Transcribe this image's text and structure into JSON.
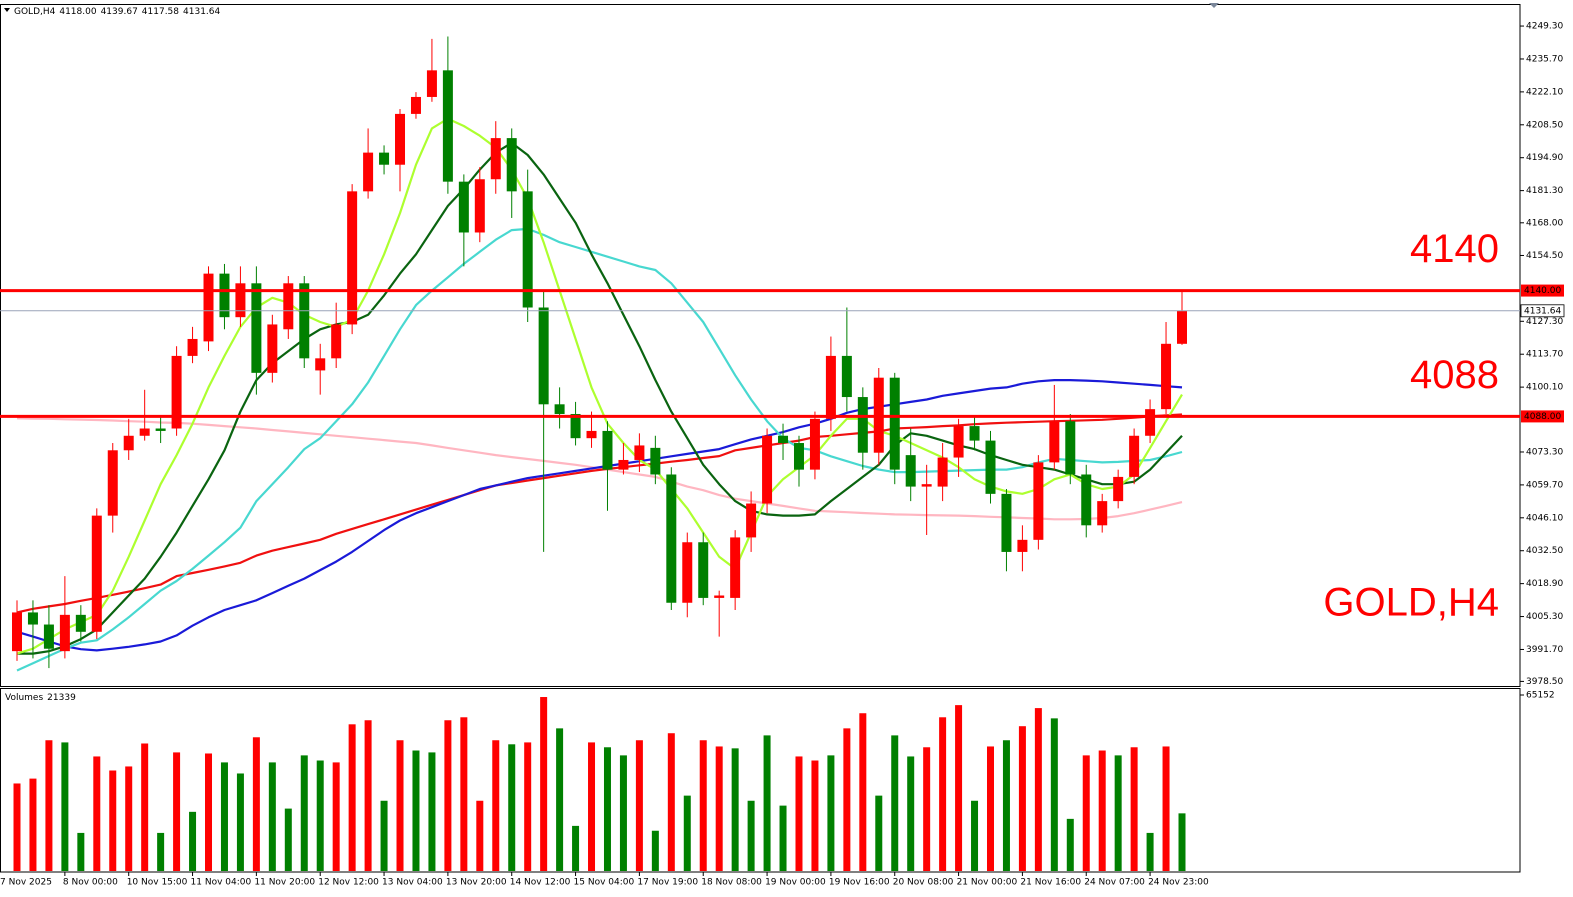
{
  "chart_data": {
    "type": "candlestick",
    "title": "GOLD,H4",
    "symbol": "GOLD,H4",
    "header_values": [
      "4118.00",
      "4139.67",
      "4117.58",
      "4131.64"
    ],
    "first_category": "7 Nov 2025",
    "categories": [
      null,
      null,
      null,
      "8 Nov 00:00",
      null,
      null,
      null,
      "10 Nov 15:00",
      null,
      null,
      null,
      "11 Nov 04:00",
      null,
      null,
      null,
      "11 Nov 20:00",
      null,
      null,
      null,
      "12 Nov 12:00",
      null,
      null,
      null,
      "13 Nov 04:00",
      null,
      null,
      null,
      "13 Nov 20:00",
      null,
      null,
      null,
      "14 Nov 12:00",
      null,
      null,
      null,
      "15 Nov 04:00",
      null,
      null,
      null,
      "17 Nov 19:00",
      null,
      null,
      null,
      "18 Nov 08:00",
      null,
      null,
      null,
      "19 Nov 00:00",
      null,
      null,
      null,
      "19 Nov 16:00",
      null,
      null,
      null,
      "20 Nov 08:00",
      null,
      null,
      null,
      "21 Nov 00:00",
      null,
      null,
      null,
      "21 Nov 16:00",
      null,
      null,
      null,
      "24 Nov 07:00",
      null,
      null,
      null,
      "24 Nov 23:00",
      null,
      null
    ],
    "open": [
      3991,
      4007,
      4002,
      3991,
      4006,
      3999,
      4047,
      4074,
      4080,
      4083,
      4083,
      4113,
      4119,
      4147,
      4129,
      4143,
      4106,
      4124,
      4143,
      4107,
      4112,
      4126,
      4181,
      4197,
      4192,
      4213,
      4220,
      4231,
      4185,
      4164,
      4186,
      4203,
      4181,
      4133,
      4093,
      4089,
      4079,
      4082,
      4066,
      4070,
      4075,
      4064,
      4011,
      4036,
      4013,
      4013,
      4038,
      4052,
      4080,
      4077,
      4066,
      4087,
      4113,
      4096,
      4073,
      4104,
      4072,
      4059,
      4059,
      4071,
      4084,
      4078,
      4056,
      4032,
      4037,
      4069,
      4086,
      4064,
      4043,
      4053,
      4063,
      4080,
      4091,
      4118
    ],
    "high": [
      4012,
      4012,
      4010,
      4022,
      4010,
      4050,
      4077,
      4087,
      4099,
      4088,
      4117,
      4125,
      4150,
      4151,
      4150,
      4150,
      4130,
      4146,
      4146,
      4118,
      4135,
      4184,
      4207,
      4200,
      4215,
      4222,
      4244,
      4245,
      4188,
      4191,
      4210,
      4207,
      4190,
      4140,
      4100,
      4094,
      4090,
      4086,
      4077,
      4081,
      4080,
      4067,
      4040,
      4040,
      4016,
      4041,
      4057,
      4083,
      4085,
      4080,
      4090,
      4121,
      4133,
      4100,
      4108,
      4106,
      4083,
      4068,
      4077,
      4087,
      4088,
      4082,
      4058,
      4043,
      4072,
      4101,
      4089,
      4068,
      4056,
      4066,
      4083,
      4095,
      4127,
      4139.67
    ],
    "low": [
      3987,
      3988,
      3984,
      3988,
      3995,
      3996,
      4040,
      4070,
      4078,
      4077,
      4080,
      4110,
      4115,
      4124,
      4125,
      4097,
      4102,
      4120,
      4108,
      4097,
      4108,
      4122,
      4178,
      4188,
      4181,
      4211,
      4218,
      4180,
      4150,
      4160,
      4180,
      4170,
      4127,
      4032,
      4083,
      4076,
      4075,
      4049,
      4064,
      4065,
      4060,
      4008,
      4005,
      4010,
      3997,
      4008,
      4032,
      4048,
      4070,
      4059,
      4062,
      4082,
      4090,
      4066,
      4068,
      4060,
      4053,
      4039,
      4053,
      4063,
      4074,
      4052,
      4024,
      4024,
      4033,
      4066,
      4060,
      4038,
      4040,
      4050,
      4060,
      4077,
      4089,
      4117.58
    ],
    "close": [
      4007,
      4002,
      3992,
      4006,
      3999,
      4047,
      4074,
      4080,
      4083,
      4082,
      4113,
      4120,
      4147,
      4129,
      4143,
      4106,
      4126,
      4143,
      4112,
      4112,
      4126,
      4181,
      4197,
      4192,
      4213,
      4220,
      4231,
      4185,
      4164,
      4186,
      4203,
      4181,
      4133,
      4093,
      4089,
      4079,
      4082,
      4066,
      4070,
      4076,
      4064,
      4011,
      4036,
      4013,
      4014,
      4038,
      4052,
      4080,
      4077,
      4066,
      4087,
      4113,
      4096,
      4073,
      4104,
      4066,
      4059,
      4060,
      4071,
      4084,
      4078,
      4056,
      4032,
      4037,
      4069,
      4086,
      4064,
      4043,
      4053,
      4063,
      4080,
      4091,
      4118,
      4131.64
    ],
    "up_color": "#ff0000",
    "down_color": "#008000",
    "ylim": [
      3976.6,
      4258.0
    ],
    "yticks": [
      {
        "value": 4249.3,
        "label": "4249.30"
      },
      {
        "value": 4235.7,
        "label": "4235.70"
      },
      {
        "value": 4222.1,
        "label": "4222.10"
      },
      {
        "value": 4208.5,
        "label": "4208.50"
      },
      {
        "value": 4194.9,
        "label": "4194.90"
      },
      {
        "value": 4181.3,
        "label": "4181.30"
      },
      {
        "value": 4168.0,
        "label": "4168.00"
      },
      {
        "value": 4154.5,
        "label": "4154.50"
      },
      {
        "value": 4127.3,
        "label": "4127.30"
      },
      {
        "value": 4113.7,
        "label": "4113.70"
      },
      {
        "value": 4100.1,
        "label": "4100.10"
      },
      {
        "value": 4073.3,
        "label": "4073.30"
      },
      {
        "value": 4059.7,
        "label": "4059.70"
      },
      {
        "value": 4046.1,
        "label": "4046.10"
      },
      {
        "value": 4032.5,
        "label": "4032.50"
      },
      {
        "value": 4018.9,
        "label": "4018.90"
      },
      {
        "value": 4005.3,
        "label": "4005.30"
      },
      {
        "value": 3991.7,
        "label": "3991.70"
      },
      {
        "value": 3978.5,
        "label": "3978.50"
      }
    ],
    "overlays": [
      {
        "color": "#ffb6c1",
        "values": [
          4087.2,
          4087.1,
          4087.0,
          4086.8,
          4086.7,
          4086.5,
          4086.3,
          4086.0,
          4085.8,
          4085.5,
          4085.3,
          4085.0,
          4084.5,
          4084.0,
          4083.5,
          4083.0,
          4082.4,
          4081.8,
          4081.2,
          4080.6,
          4080.0,
          4079.4,
          4078.8,
          4078.2,
          4077.6,
          4077.0,
          4076.0,
          4075.0,
          4074.0,
          4073.0,
          4072.0,
          4071.2,
          4070.4,
          4069.6,
          4068.8,
          4068.0,
          4067.0,
          4066.0,
          4065.0,
          4064.0,
          4063.0,
          4061.0,
          4059.0,
          4057.5,
          4055.5,
          4054.0,
          4053.0,
          4052.0,
          4051.0,
          4050.0,
          4049.0,
          4048.7,
          4048.4,
          4048.1,
          4047.8,
          4047.5,
          4047.4,
          4047.2,
          4047.1,
          4047.0,
          4046.8,
          4046.5,
          4046.3,
          4046.0,
          4045.8,
          4045.5,
          4045.5,
          4045.6,
          4046.0,
          4046.8,
          4048.0,
          4049.5,
          4051.0,
          4052.6
        ]
      },
      {
        "color": "#f01010",
        "values": [
          4007,
          4008.5,
          4009.5,
          4010.5,
          4011.8,
          4013,
          4014.3,
          4015.6,
          4017,
          4018.5,
          4022,
          4023.3,
          4024.6,
          4026,
          4027.5,
          4030.5,
          4032.5,
          4034,
          4035.5,
          4037,
          4039.5,
          4041.5,
          4043.5,
          4045.5,
          4047.5,
          4049.5,
          4051.5,
          4053.5,
          4055.5,
          4057.5,
          4059.5,
          4060.5,
          4061.5,
          4062.5,
          4063.5,
          4064.5,
          4065.5,
          4066.3,
          4067,
          4067.8,
          4068.5,
          4069.3,
          4070,
          4070.8,
          4071.6,
          4074,
          4075,
          4076,
          4077,
          4078,
          4079.5,
          4080,
          4080.6,
          4081.2,
          4081.8,
          4083,
          4083.3,
          4083.6,
          4084,
          4084.3,
          4084.8,
          4085.1,
          4085.4,
          4085.6,
          4085.8,
          4086,
          4086.2,
          4086.4,
          4086.6,
          4087,
          4087.5,
          4088,
          4088.4,
          4088.8
        ]
      },
      {
        "color": "#1a1ad8",
        "values": [
          3999,
          3997,
          3995,
          3993,
          3991.8,
          3991.3,
          3992,
          3992.8,
          3993.8,
          3995,
          3997.5,
          4001.5,
          4005,
          4008,
          4010,
          4012,
          4015,
          4018,
          4021,
          4024.5,
          4028,
          4032,
          4036.5,
          4041,
          4045,
          4048,
          4050.5,
          4053,
          4055.5,
          4058,
          4059.5,
          4061,
          4062.5,
          4063.5,
          4064.5,
          4065.5,
          4066.5,
          4067.5,
          4068.5,
          4069.5,
          4070.5,
          4071.5,
          4072.5,
          4073.5,
          4074.5,
          4076.5,
          4078.5,
          4080,
          4081.5,
          4083.5,
          4085,
          4087,
          4089.5,
          4091,
          4092,
          4093,
          4094,
          4095,
          4096.5,
          4097.5,
          4098.5,
          4099.5,
          4100,
          4101.5,
          4102.5,
          4103,
          4103,
          4102.8,
          4102.5,
          4102,
          4101.5,
          4101,
          4100.5,
          4100
        ]
      },
      {
        "color": "#48d8d0",
        "values": [
          3983,
          3986,
          3989,
          3992,
          3994.5,
          3995.5,
          4000,
          4005,
          4010.5,
          4016,
          4020,
          4025,
          4030.5,
          4036,
          4042,
          4053,
          4060,
          4067,
          4074.5,
          4079,
          4086,
          4093,
          4102,
          4113,
          4124,
          4134,
          4140,
          4145.5,
          4151,
          4156,
          4161,
          4165,
          4165.5,
          4163,
          4160,
          4158,
          4156,
          4154,
          4152,
          4150,
          4148.5,
          4143,
          4135,
          4127,
          4116,
          4105,
          4095,
          4086,
          4079,
          4075,
          4074,
          4071.5,
          4069.5,
          4067.5,
          4066,
          4065,
          4065,
          4065.2,
          4065.4,
          4065.6,
          4065.8,
          4066,
          4066,
          4067,
          4069,
          4070.5,
          4070,
          4069.5,
          4069,
          4069.2,
          4069.6,
          4070,
          4071.5,
          4073.3
        ]
      },
      {
        "color": "#0a6410",
        "values": [
          3990,
          3990,
          3991,
          3993,
          3996,
          4000,
          4007,
          4014,
          4021,
          4030,
          4040,
          4051,
          4062,
          4074,
          4090,
          4103,
          4110,
          4115,
          4120,
          4124,
          4126,
          4127,
          4130,
          4138,
          4147,
          4155,
          4165,
          4175,
          4182,
          4190,
          4197,
          4201,
          4196,
          4188,
          4178,
          4168,
          4155,
          4143,
          4130,
          4117,
          4103,
          4090,
          4079,
          4068,
          4060,
          4053,
          4049,
          4047.5,
          4047,
          4047,
          4047.5,
          4053,
          4058,
          4063,
          4068,
          4076,
          4081,
          4080,
          4078,
          4076,
          4074.5,
          4072,
          4070,
          4068,
          4067,
          4066,
          4064,
          4062,
          4060,
          4060,
          4061,
          4066,
          4073,
          4080
        ]
      },
      {
        "color": "#adff2f",
        "values": [
          3990,
          3992,
          3996,
          4000,
          4003,
          4006,
          4016,
          4030,
          4045,
          4060,
          4072,
          4085,
          4100,
          4113,
          4125,
          4133,
          4137,
          4135,
          4130,
          4127,
          4125,
          4128,
          4140,
          4155,
          4172,
          4192,
          4207,
          4211,
          4208,
          4204,
          4199,
          4190,
          4178,
          4160,
          4140,
          4120,
          4100,
          4085,
          4077,
          4070,
          4066,
          4058,
          4050,
          4040,
          4030,
          4025,
          4040,
          4055,
          4062,
          4067,
          4072,
          4080,
          4087,
          4087,
          4082,
          4080,
          4077,
          4074,
          4071,
          4067,
          4062,
          4059,
          4057,
          4056,
          4058,
          4062,
          4064,
          4060,
          4058,
          4059,
          4064,
          4075,
          4086,
          4097
        ]
      }
    ],
    "levels": [
      {
        "value": 4140,
        "label": "4140.00",
        "annotation": "4140",
        "color": "#ff0000"
      },
      {
        "value": 4088,
        "label": "4088.00",
        "annotation": "4088",
        "color": "#ff0000"
      }
    ],
    "current_price": {
      "value": 4131.64,
      "label": "4131.64"
    },
    "volume": {
      "title": "Volumes",
      "values": [
        32400,
        34200,
        48400,
        47600,
        14100,
        42400,
        37200,
        38700,
        47200,
        14100,
        43900,
        21900,
        43500,
        40200,
        36100,
        49500,
        40200,
        23100,
        42800,
        40900,
        40200,
        54300,
        55800,
        26000,
        48400,
        44600,
        43900,
        55800,
        56900,
        26000,
        48400,
        46900,
        47600,
        64400,
        52800,
        16700,
        47600,
        45800,
        42800,
        48400,
        14900,
        51000,
        27900,
        48400,
        46100,
        45400,
        26000,
        50200,
        24200,
        42400,
        40900,
        42800,
        52800,
        58400,
        27900,
        50200,
        42400,
        45800,
        56900,
        61400,
        26000,
        46100,
        48400,
        53600,
        60300,
        56500,
        19300,
        42800,
        44600,
        42800,
        45800,
        14100,
        46100,
        21339
      ],
      "colors": [
        "#ff0000",
        "#ff0000",
        "#ff0000",
        "#008000",
        "#008000",
        "#ff0000",
        "#ff0000",
        "#ff0000",
        "#ff0000",
        "#008000",
        "#ff0000",
        "#008000",
        "#ff0000",
        "#008000",
        "#008000",
        "#ff0000",
        "#008000",
        "#008000",
        "#008000",
        "#008000",
        "#ff0000",
        "#ff0000",
        "#ff0000",
        "#008000",
        "#ff0000",
        "#008000",
        "#008000",
        "#ff0000",
        "#ff0000",
        "#ff0000",
        "#ff0000",
        "#008000",
        "#ff0000",
        "#ff0000",
        "#008000",
        "#008000",
        "#ff0000",
        "#008000",
        "#008000",
        "#ff0000",
        "#008000",
        "#ff0000",
        "#008000",
        "#ff0000",
        "#ff0000",
        "#008000",
        "#008000",
        "#008000",
        "#008000",
        "#ff0000",
        "#ff0000",
        "#008000",
        "#ff0000",
        "#ff0000",
        "#008000",
        "#008000",
        "#008000",
        "#ff0000",
        "#ff0000",
        "#ff0000",
        "#008000",
        "#ff0000",
        "#008000",
        "#ff0000",
        "#ff0000",
        "#008000",
        "#008000",
        "#ff0000",
        "#ff0000",
        "#008000",
        "#ff0000",
        "#008000",
        "#ff0000",
        "#008000"
      ],
      "ylim": [
        0,
        67000
      ],
      "yticks": [
        65152
      ]
    }
  }
}
